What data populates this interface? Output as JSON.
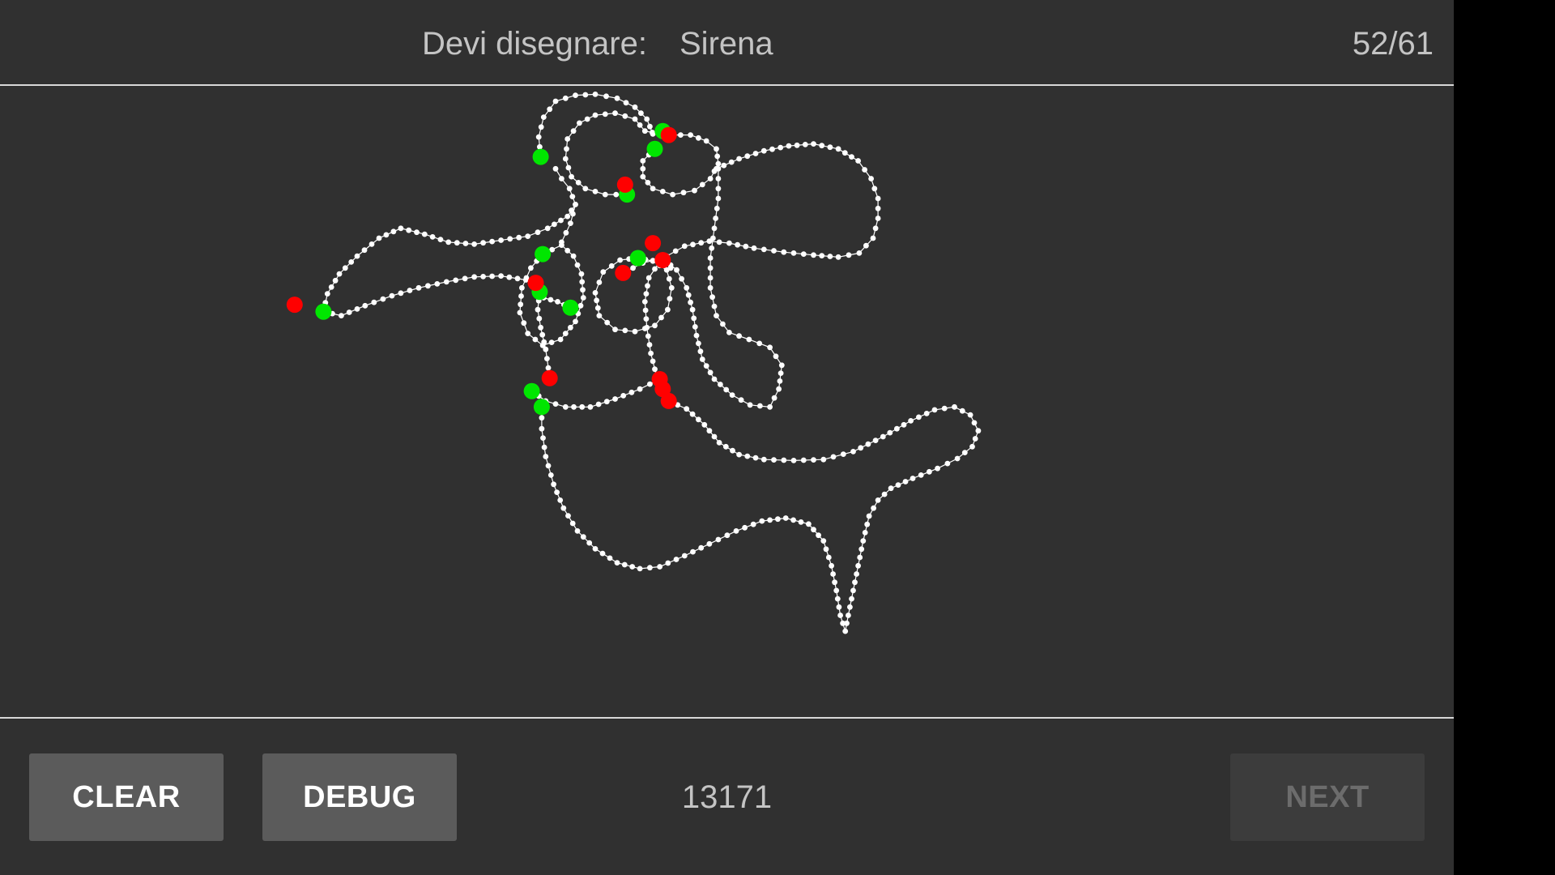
{
  "header": {
    "prompt_label": "Devi disegnare:",
    "prompt_word": "Sirena",
    "counter": "52/61"
  },
  "canvas": {
    "stroke_color": "#ffffff",
    "start_marker_color": "#00e600",
    "end_marker_color": "#ff0000"
  },
  "footer": {
    "clear_label": "CLEAR",
    "debug_label": "DEBUG",
    "score": "13171",
    "next_label": "NEXT"
  }
}
